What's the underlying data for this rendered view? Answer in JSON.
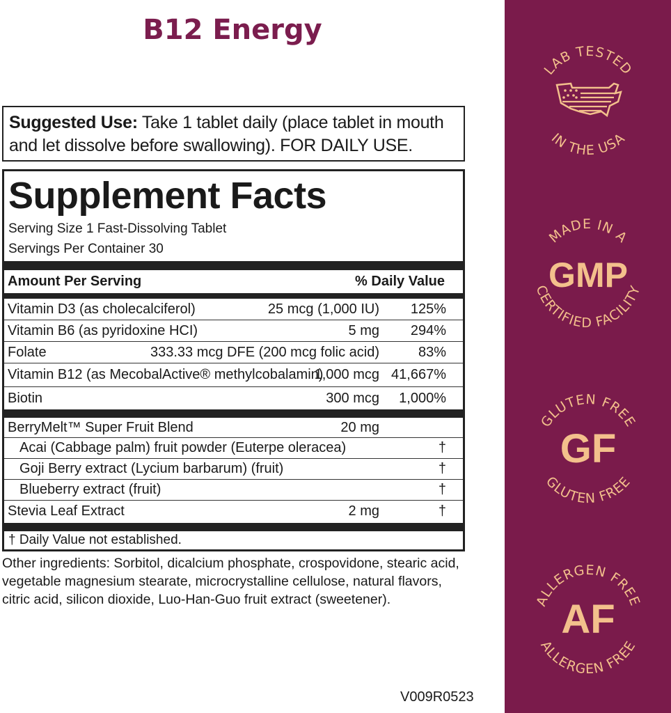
{
  "title": "B12 Energy",
  "suggested_use": {
    "label": "Suggested Use:",
    "text": " Take 1 tablet daily (place tablet in mouth and let dissolve before swallowing). FOR DAILY USE."
  },
  "facts": {
    "heading": "Supplement Facts",
    "serving_size": "Serving Size 1 Fast-Dissolving Tablet",
    "servings_per_container": "Servings Per Container 30",
    "header": {
      "amount": "Amount Per Serving",
      "dv": "% Daily Value"
    },
    "rows": [
      {
        "name": "Vitamin D3 (as cholecalciferol)",
        "amount": "25 mcg (1,000 IU)",
        "dv": "125%"
      },
      {
        "name": "Vitamin B6 (as pyridoxine HCI)",
        "amount": "5 mg",
        "dv": "294%"
      },
      {
        "name": "Folate",
        "amount": "333.33 mcg DFE (200 mcg folic acid)",
        "dv": "83%"
      },
      {
        "name": "Vitamin B12 (as MecobalActive® methylcobalamin)",
        "amount": "1,000 mcg",
        "dv": "41,667%"
      },
      {
        "name": "Biotin",
        "amount": "300 mcg",
        "dv": "1,000%"
      }
    ],
    "blend_rows": [
      {
        "name": "BerryMelt™ Super Fruit Blend",
        "amount": "20 mg",
        "dv": ""
      },
      {
        "name": "Acai (Cabbage palm) fruit powder (Euterpe oleracea)",
        "amount": "",
        "dv": "†"
      },
      {
        "name": "Goji Berry extract (Lycium barbarum) (fruit)",
        "amount": "",
        "dv": "†"
      },
      {
        "name": "Blueberry extract (fruit)",
        "amount": "",
        "dv": "†"
      },
      {
        "name": "Stevia Leaf Extract",
        "amount": "2 mg",
        "dv": "†"
      }
    ],
    "footnote": "† Daily Value not established."
  },
  "other_ingredients": "Other ingredients: Sorbitol, dicalcium phosphate, crospovidone, stearic acid, vegetable magnesium stearate, microcrystalline cellulose, natural flavors, citric acid, silicon dioxide, Luo-Han-Guo fruit extract (sweetener).",
  "version_code": "V009R0523",
  "badges": [
    {
      "top": "LAB TESTED",
      "bottom": "IN THE USA",
      "center": "",
      "icon": "usa-flag-map-icon"
    },
    {
      "top": "MADE IN A",
      "bottom": "CERTIFIED FACILITY",
      "center": "GMP"
    },
    {
      "top": "GLUTEN FREE",
      "bottom": "GLUTEN FREE",
      "center": "GF"
    },
    {
      "top": "ALLERGEN FREE",
      "bottom": "ALLERGEN FREE",
      "center": "AF"
    }
  ],
  "colors": {
    "brand": "#7b1d4e",
    "band": "#7a1b4b",
    "badge_text": "#f3c08c"
  }
}
